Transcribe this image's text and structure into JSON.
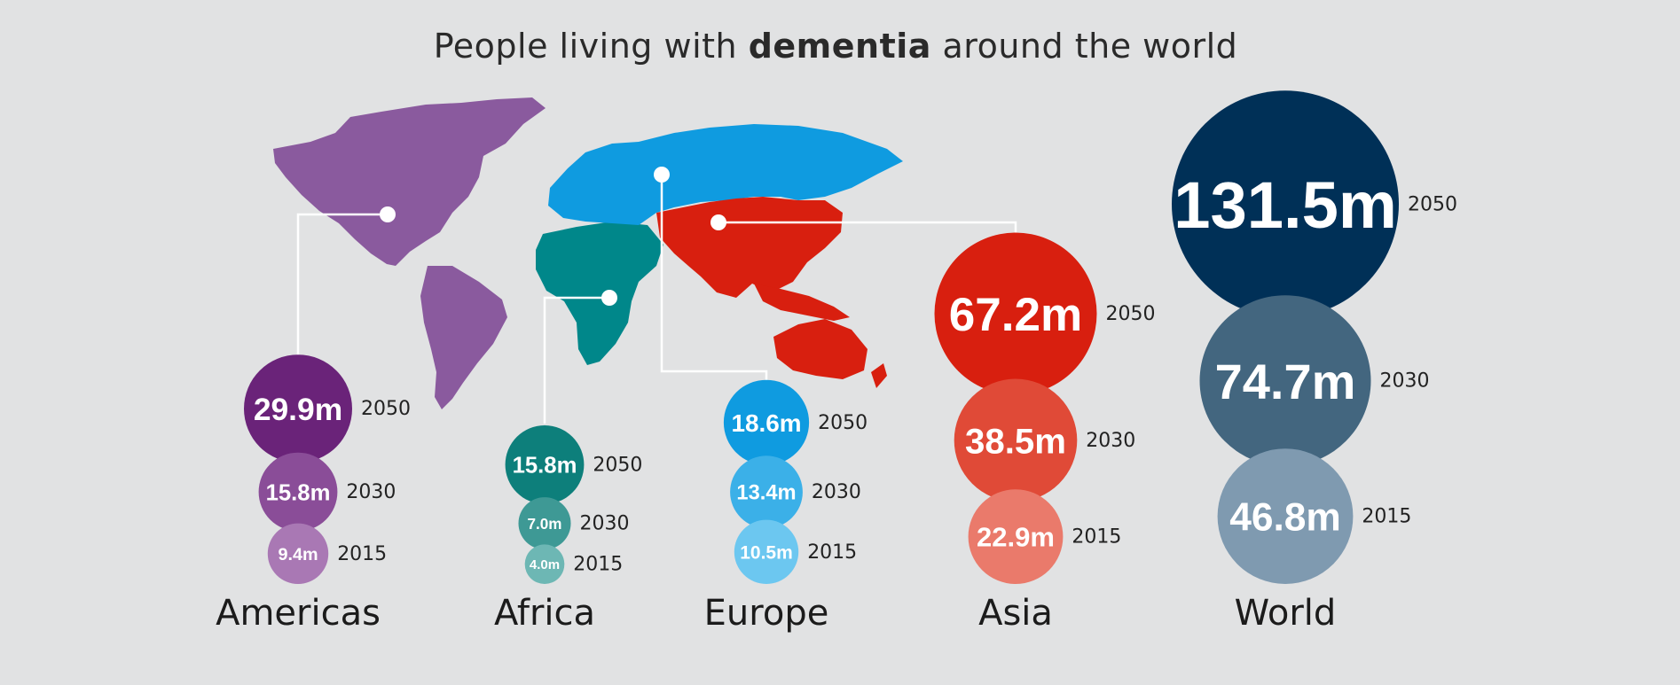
{
  "title": {
    "prefix": "People living with ",
    "bold": "dementia",
    "suffix": " around the world"
  },
  "colors": {
    "background": "#e1e2e3",
    "americas": [
      "#6a2379",
      "#8a4d98",
      "#a978b4"
    ],
    "africa": [
      "#0d7f7b",
      "#3e9995",
      "#6db7b4"
    ],
    "europe": [
      "#0f9be0",
      "#3bb0e8",
      "#6cc7f0"
    ],
    "asia": [
      "#d81f0f",
      "#e04a37",
      "#ea7a6b"
    ],
    "world": [
      "#003057",
      "#43667f",
      "#7f9ab0"
    ]
  },
  "chart_data": {
    "type": "bubble",
    "title": "People living with dementia around the world",
    "unit": "m",
    "years": [
      "2050",
      "2030",
      "2015"
    ],
    "groups": [
      {
        "name": "Americas",
        "values": [
          {
            "year": "2050",
            "value": 29.9,
            "label": "29.9m"
          },
          {
            "year": "2030",
            "value": 15.8,
            "label": "15.8m"
          },
          {
            "year": "2015",
            "value": 9.4,
            "label": "9.4m"
          }
        ]
      },
      {
        "name": "Africa",
        "values": [
          {
            "year": "2050",
            "value": 15.8,
            "label": "15.8m"
          },
          {
            "year": "2030",
            "value": 7.0,
            "label": "7.0m"
          },
          {
            "year": "2015",
            "value": 4.0,
            "label": "4.0m"
          }
        ]
      },
      {
        "name": "Europe",
        "values": [
          {
            "year": "2050",
            "value": 18.6,
            "label": "18.6m"
          },
          {
            "year": "2030",
            "value": 13.4,
            "label": "13.4m"
          },
          {
            "year": "2015",
            "value": 10.5,
            "label": "10.5m"
          }
        ]
      },
      {
        "name": "Asia",
        "values": [
          {
            "year": "2050",
            "value": 67.2,
            "label": "67.2m"
          },
          {
            "year": "2030",
            "value": 38.5,
            "label": "38.5m"
          },
          {
            "year": "2015",
            "value": 22.9,
            "label": "22.9m"
          }
        ]
      },
      {
        "name": "World",
        "values": [
          {
            "year": "2050",
            "value": 131.5,
            "label": "131.5m"
          },
          {
            "year": "2030",
            "value": 74.7,
            "label": "74.7m"
          },
          {
            "year": "2015",
            "value": 46.8,
            "label": "46.8m"
          }
        ]
      }
    ]
  }
}
